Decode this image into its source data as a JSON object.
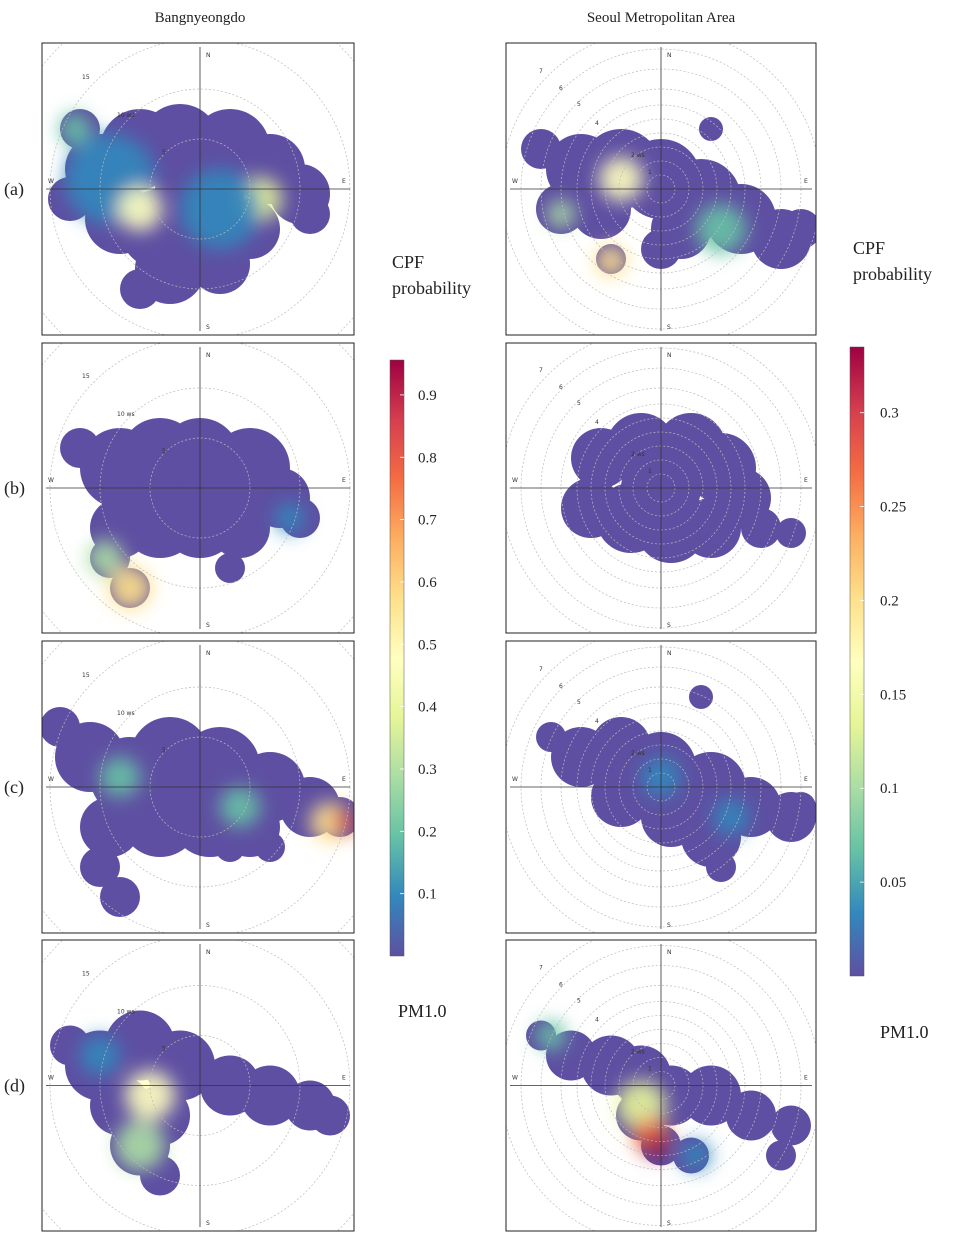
{
  "column_titles": [
    "Bangnyeongdo",
    "Seoul Metropolitan Area"
  ],
  "row_labels": [
    "(a)",
    "(b)",
    "(c)",
    "(d)"
  ],
  "compass": {
    "north": "N",
    "south": "S",
    "east": "E",
    "west": "W"
  },
  "left_ring_labels": [
    "15",
    "10 ws",
    "5"
  ],
  "right_ring_labels": [
    "7",
    "6",
    "5",
    "4",
    "2 ws",
    "1"
  ],
  "colorbars": [
    {
      "title": [
        "CPF",
        "probability"
      ],
      "variable": "PM1.0",
      "lim": [
        0,
        0.956
      ],
      "ticks": [
        0.1,
        0.2,
        0.3,
        0.4,
        0.5,
        0.6,
        0.7,
        0.8,
        0.9
      ]
    },
    {
      "title": [
        "CPF",
        "probability"
      ],
      "variable": "PM1.0",
      "lim": [
        0,
        0.335
      ],
      "ticks": [
        0.05,
        0.1,
        0.15,
        0.2,
        0.25,
        0.3
      ]
    }
  ]
}
